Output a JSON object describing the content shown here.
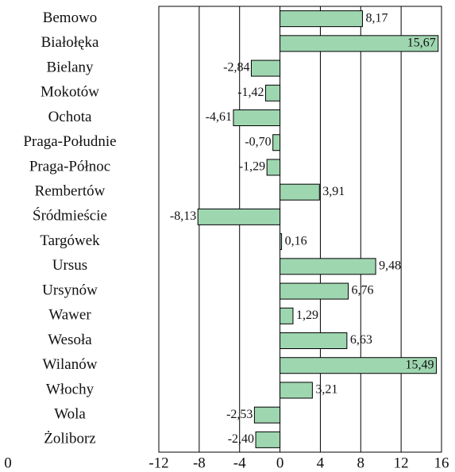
{
  "chart_data": {
    "type": "barh",
    "categories": [
      "Bemowo",
      "Białołęka",
      "Bielany",
      "Mokotów",
      "Ochota",
      "Praga-Południe",
      "Praga-Północ",
      "Rembertów",
      "Śródmieście",
      "Targówek",
      "Ursus",
      "Ursynów",
      "Wawer",
      "Wesoła",
      "Wilanów",
      "Włochy",
      "Wola",
      "Żoliborz"
    ],
    "values": [
      8.17,
      15.67,
      -2.84,
      -1.42,
      -4.61,
      -0.7,
      -1.29,
      3.91,
      -8.13,
      0.16,
      9.48,
      6.76,
      1.29,
      6.63,
      15.49,
      3.21,
      -2.53,
      -2.4
    ],
    "value_labels": [
      "8,17",
      "15,67",
      "-2,84",
      "-1,42",
      "-4,61",
      "-0,70",
      "-1,29",
      "3,91",
      "-8,13",
      "0,16",
      "9,48",
      "6,76",
      "1,29",
      "6,63",
      "15,49",
      "3,21",
      "-2,53",
      "-2,40"
    ],
    "color": "#9ed6b0",
    "xlim": [
      -12,
      16
    ],
    "xticks": [
      -12,
      -8,
      -4,
      0,
      4,
      8,
      12,
      16
    ],
    "grid": true,
    "corner_label": "0"
  }
}
